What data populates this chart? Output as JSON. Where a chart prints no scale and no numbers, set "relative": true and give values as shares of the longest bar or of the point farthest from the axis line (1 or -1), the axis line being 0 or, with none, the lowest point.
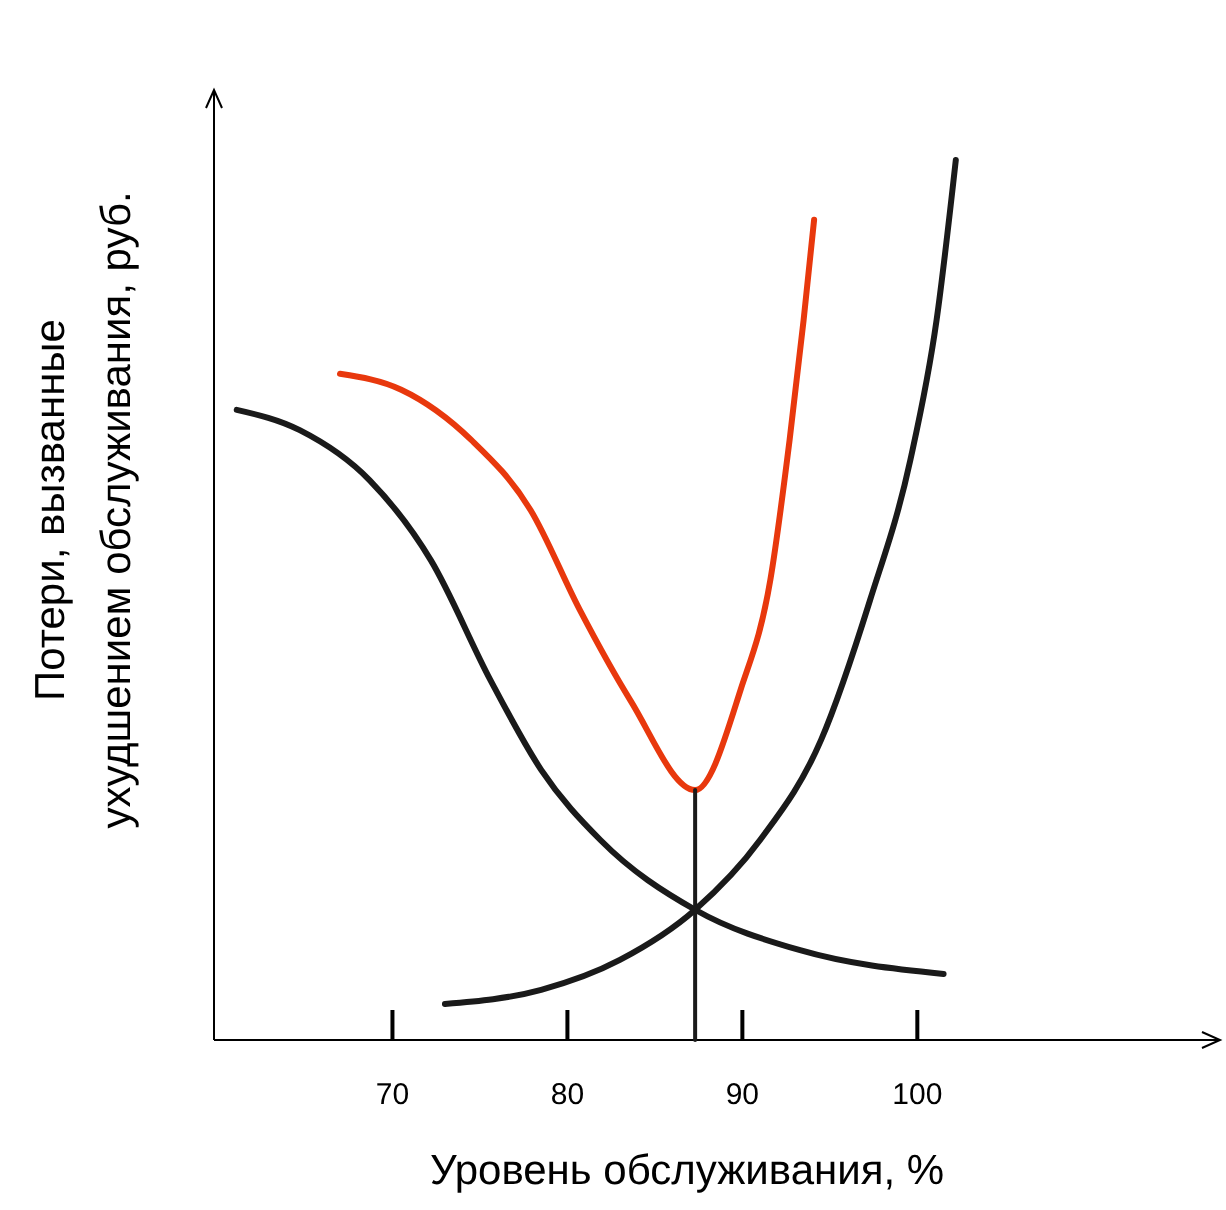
{
  "chart_data": {
    "type": "line",
    "relative": true,
    "xlabel": "Уровень обслуживания, %",
    "ylabel": "Потери, вызванные\nухудшением обслуживания, руб.",
    "xlim": [
      59.8,
      117.3
    ],
    "xticks": [
      70,
      80,
      90,
      100
    ],
    "tick_labels": "x",
    "grid": false,
    "line_style": "solid",
    "series": [
      {
        "color": "#1a1a1a",
        "x": [
          61.1,
          64.7,
          68.7,
          72.2,
          75.6,
          78.5,
          81.9,
          87.3,
          93.3,
          101.5
        ],
        "values": [
          0.716,
          0.693,
          0.636,
          0.545,
          0.409,
          0.307,
          0.227,
          0.148,
          0.102,
          0.075
        ]
      },
      {
        "color": "#1a1a1a",
        "x": [
          73.0,
          78.5,
          83.0,
          87.3,
          91.0,
          94.5,
          97.3,
          99.6,
          101.1,
          102.2
        ],
        "values": [
          0.041,
          0.057,
          0.091,
          0.148,
          0.227,
          0.341,
          0.5,
          0.659,
          0.818,
          1
        ]
      },
      {
        "color": "#e8380d",
        "x": [
          67.0,
          70.5,
          74.5,
          77.9,
          80.7,
          83.6,
          87.3,
          89.9,
          91.6,
          92.7,
          93.5,
          94.1
        ],
        "values": [
          0.757,
          0.739,
          0.682,
          0.602,
          0.489,
          0.386,
          0.284,
          0.398,
          0.523,
          0.682,
          0.818,
          0.932
        ]
      },
      {
        "color": "#1a1a1a",
        "x": [
          87.3,
          87.3
        ],
        "values": [
          0,
          0.284
        ]
      }
    ]
  }
}
